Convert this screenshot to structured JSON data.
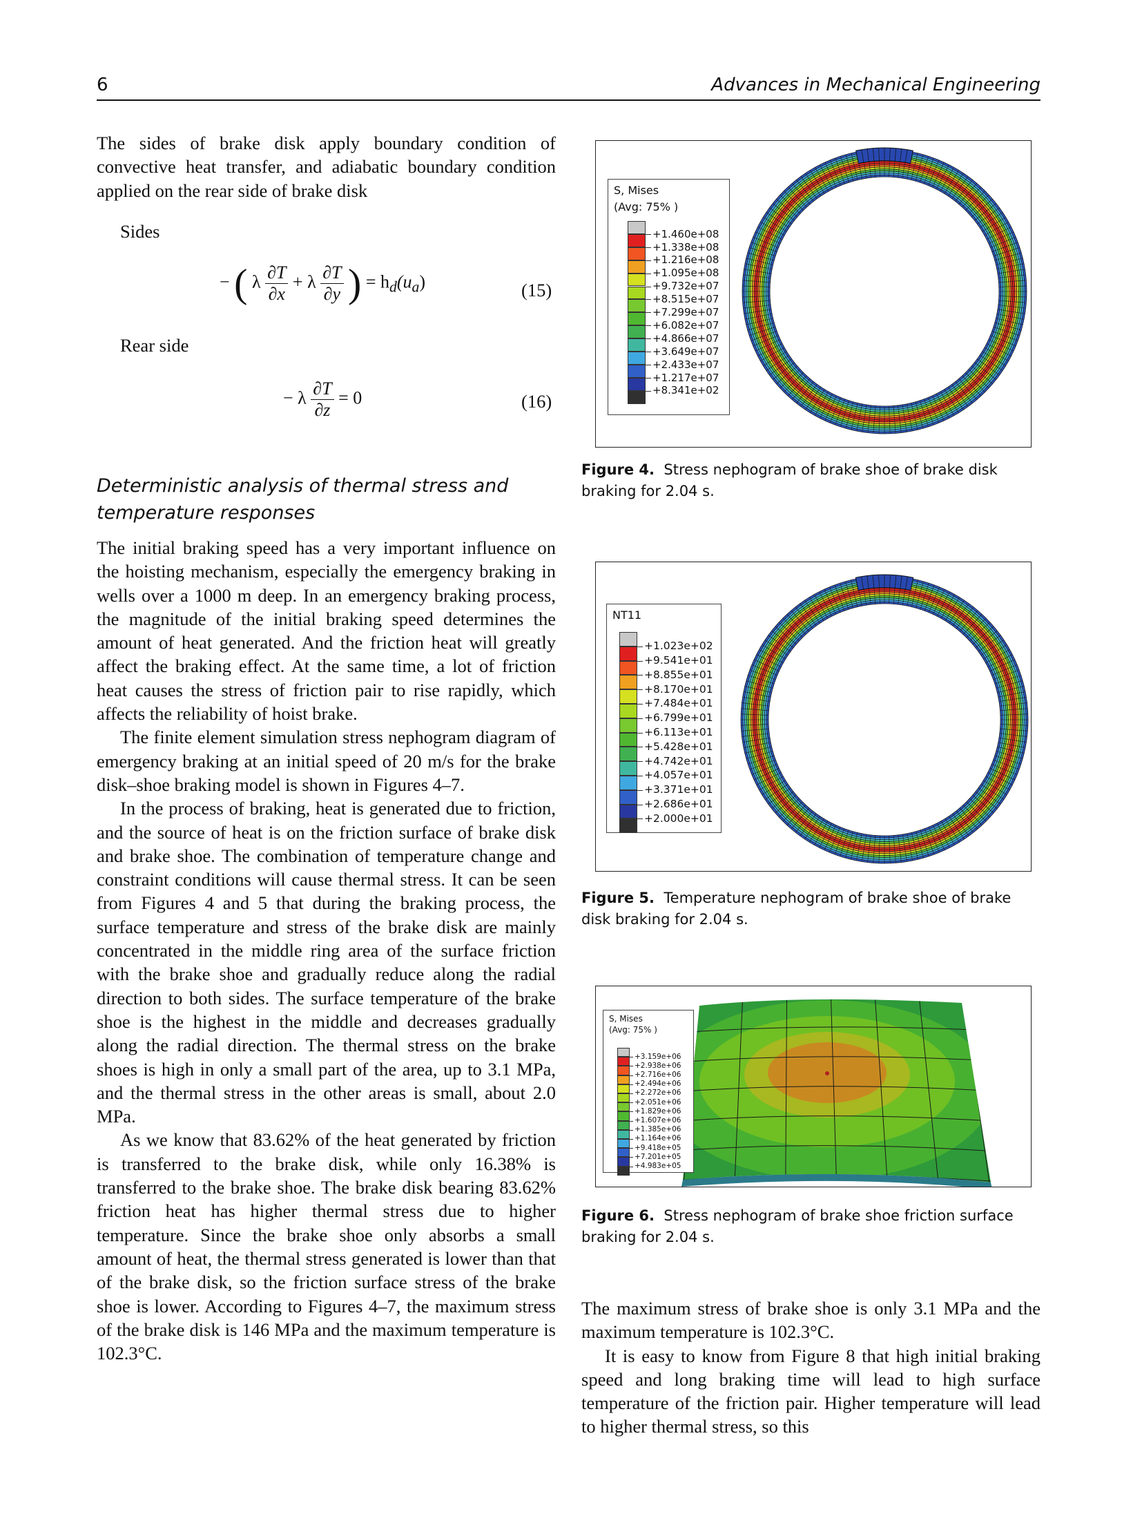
{
  "header": {
    "page_number": "6",
    "journal": "Advances in Mechanical Engineering"
  },
  "left_column": {
    "intro_paragraph": "The sides of brake disk apply boundary condition of convective heat transfer, and adiabatic boundary condition applied on the rear side of brake disk",
    "sides_label": "Sides",
    "eq15": {
      "minus": "−",
      "lambda": "λ",
      "dT": "∂T",
      "dx": "∂x",
      "dy": "∂y",
      "plus": "+",
      "rhs": "= h",
      "rhs_sub": "d",
      "rhs_arg": "(u",
      "rhs_arg_sub": "a",
      "rhs_close": ")",
      "number": "(15)"
    },
    "rear_label": "Rear side",
    "eq16": {
      "minus": "−",
      "lambda": "λ",
      "dT": "∂T",
      "dz": "∂z",
      "rhs": "= 0",
      "number": "(16)"
    },
    "section_heading": "Deterministic analysis of thermal stress and temperature responses",
    "paragraphs": [
      "The initial braking speed has a very important influence on the hoisting mechanism, especially the emergency braking in wells over a 1000 m deep. In an emergency braking process, the magnitude of the initial braking speed determines the amount of heat generated. And the friction heat will greatly affect the braking effect. At the same time, a lot of friction heat causes the stress of friction pair to rise rapidly, which affects the reliability of hoist brake.",
      "The finite element simulation stress nephogram diagram of emergency braking at an initial speed of 20 m/s for the brake disk–shoe braking model is shown in Figures 4–7.",
      "In the process of braking, heat is generated due to friction, and the source of heat is on the friction surface of brake disk and brake shoe. The combination of temperature change and constraint conditions will cause thermal stress. It can be seen from Figures 4 and 5 that during the braking process, the surface temperature and stress of the brake disk are mainly concentrated in the middle ring area of the surface friction with the brake shoe and gradually reduce along the radial direction to both sides. The surface temperature of the brake shoe is the highest in the middle and decreases gradually along the radial direction. The thermal stress on the brake shoes is high in only a small part of the area, up to 3.1 MPa, and the thermal stress in the other areas is small, about 2.0 MPa.",
      "As we know that 83.62% of the heat generated by friction is transferred to the brake disk, while only 16.38% is transferred to the brake shoe. The brake disk bearing 83.62% friction heat has higher thermal stress due to higher temperature. Since the brake shoe only absorbs a small amount of heat, the thermal stress generated is lower than that of the brake disk, so the friction surface stress of the brake shoe is lower. According to Figures 4–7, the maximum stress of the brake disk is 146 MPa and the maximum temperature is 102.3°C."
    ]
  },
  "figures": [
    {
      "label": "Figure 4.",
      "caption": "Stress nephogram of brake shoe of brake disk braking for 2.04 s.",
      "legend_title": [
        "S, Mises",
        "(Avg: 75% )"
      ],
      "legend_values": [
        "+1.460e+08",
        "+1.338e+08",
        "+1.216e+08",
        "+1.095e+08",
        "+9.732e+07",
        "+8.515e+07",
        "+7.299e+07",
        "+6.082e+07",
        "+4.866e+07",
        "+3.649e+07",
        "+2.433e+07",
        "+1.217e+07",
        "+8.341e+02"
      ]
    },
    {
      "label": "Figure 5.",
      "caption": "Temperature nephogram of brake shoe of brake disk braking for 2.04 s.",
      "legend_title": [
        "NT11"
      ],
      "legend_values": [
        "+1.023e+02",
        "+9.541e+01",
        "+8.855e+01",
        "+8.170e+01",
        "+7.484e+01",
        "+6.799e+01",
        "+6.113e+01",
        "+5.428e+01",
        "+4.742e+01",
        "+4.057e+01",
        "+3.371e+01",
        "+2.686e+01",
        "+2.000e+01"
      ]
    },
    {
      "label": "Figure 6.",
      "caption": "Stress nephogram of brake shoe friction surface braking for 2.04 s.",
      "legend_title": [
        "S, Mises",
        "(Avg: 75% )"
      ],
      "legend_values": [
        "+3.159e+06",
        "+2.938e+06",
        "+2.716e+06",
        "+2.494e+06",
        "+2.272e+06",
        "+2.051e+06",
        "+1.829e+06",
        "+1.607e+06",
        "+1.385e+06",
        "+1.164e+06",
        "+9.418e+05",
        "+7.201e+05",
        "+4.983e+05"
      ]
    }
  ],
  "legend_colors": [
    "#c8c8c8",
    "#e02020",
    "#f05522",
    "#f0a020",
    "#d4e020",
    "#a8d820",
    "#78c830",
    "#50b830",
    "#40b050",
    "#40b8a0",
    "#40a8e0",
    "#3060c8",
    "#2838a0",
    "#303030"
  ],
  "right_column": {
    "paragraphs": [
      "The maximum stress of brake shoe is only 3.1 MPa and the maximum temperature is 102.3°C.",
      "It is easy to know from Figure 8 that high initial braking speed and long braking time will lead to high surface temperature of the friction pair. Higher temperature will lead to higher thermal stress, so this"
    ]
  }
}
